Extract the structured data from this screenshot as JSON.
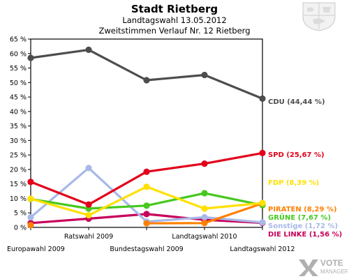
{
  "header": {
    "title": "Stadt Rietberg",
    "subtitle_1": "Landtagswahl 13.05.2012",
    "subtitle_2": "Zweitstimmen Verlauf Nr. 12 Rietberg"
  },
  "branding": {
    "crest_icon": "nrw-coat-of-arms-icon",
    "logo_icon": "votemanager-logo-icon",
    "logo_text_1": "VOTE",
    "logo_text_2": "MANAGER"
  },
  "chart_data": {
    "type": "line",
    "title": "Stadt Rietberg",
    "xlabel": "",
    "ylabel": "",
    "ylim": [
      0,
      65
    ],
    "y_ticks": [
      "0 %",
      "5 %",
      "10 %",
      "15 %",
      "20 %",
      "25 %",
      "30 %",
      "35 %",
      "40 %",
      "45 %",
      "50 %",
      "55 %",
      "60 %",
      "65 %"
    ],
    "grid": false,
    "categories": [
      "Europawahl 2009",
      "Ratswahl 2009",
      "Bundestagswahl 2009",
      "Landtagswahl 2010",
      "Landtagswahl 2012"
    ],
    "series": [
      {
        "name": "CDU",
        "label": "CDU (44,44 %)",
        "color": "#4d4d4d",
        "values": [
          58.5,
          61.3,
          50.8,
          52.6,
          44.44
        ]
      },
      {
        "name": "SPD",
        "label": "SPD (25,67 %)",
        "color": "#e2001a",
        "values": [
          15.7,
          7.9,
          19.2,
          22.0,
          25.67
        ]
      },
      {
        "name": "FDP",
        "label": "FDP (8,39 %)",
        "color": "#ffe000",
        "values": [
          9.9,
          4.2,
          14.0,
          6.5,
          8.39
        ]
      },
      {
        "name": "PIRATEN",
        "label": "PIRATEN (8,29 %)",
        "color": "#ff8000",
        "values": [
          0.8,
          null,
          1.4,
          1.5,
          8.29
        ]
      },
      {
        "name": "GRÜNE",
        "label": "GRÜNE (7,67 %)",
        "color": "#46c81e",
        "values": [
          9.8,
          6.5,
          7.5,
          11.8,
          7.67
        ]
      },
      {
        "name": "Sonstige",
        "label": "Sonstige (1,72 %)",
        "color": "#a8b8e8",
        "values": [
          3.5,
          20.5,
          2.0,
          3.5,
          1.72
        ]
      },
      {
        "name": "DIE LINKE",
        "label": "DIE LINKE (1,56 %)",
        "color": "#c8005a",
        "values": [
          1.5,
          3.0,
          4.6,
          2.6,
          1.56
        ]
      }
    ]
  }
}
